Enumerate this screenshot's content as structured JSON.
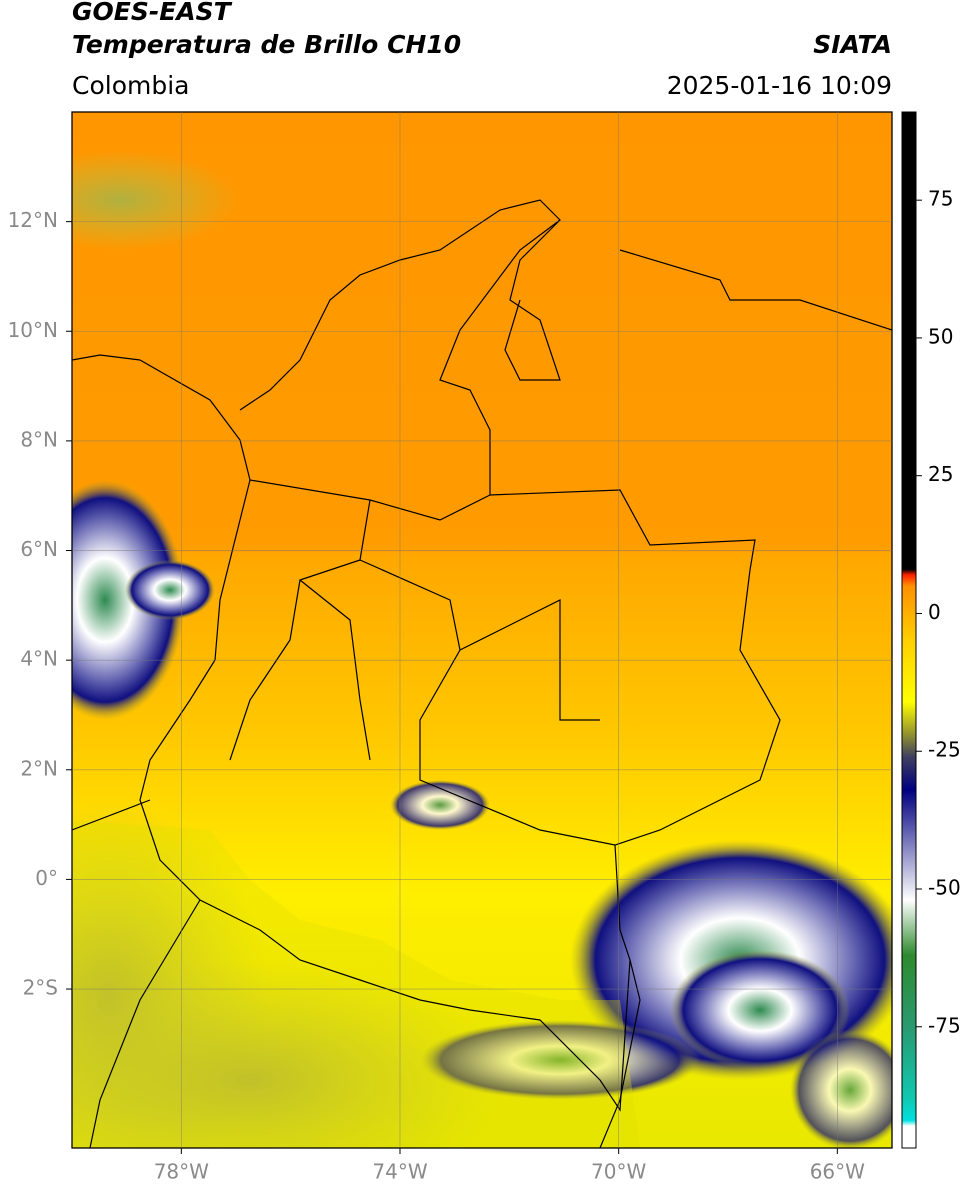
{
  "header": {
    "title": "GOES-EAST",
    "subtitle": "Temperatura de Brillo CH10",
    "agency": "SIATA",
    "region": "Colombia",
    "datetime": "2025-01-16 10:09"
  },
  "map": {
    "xlim": [
      -80,
      -65
    ],
    "ylim": [
      -4.9,
      14
    ],
    "xticks": [
      {
        "value": -78,
        "label": "78°W"
      },
      {
        "value": -74,
        "label": "74°W"
      },
      {
        "value": -70,
        "label": "70°W"
      },
      {
        "value": -66,
        "label": "66°W"
      }
    ],
    "yticks": [
      {
        "value": 12,
        "label": "12°N"
      },
      {
        "value": 10,
        "label": "10°N"
      },
      {
        "value": 8,
        "label": "8°N"
      },
      {
        "value": 6,
        "label": "6°N"
      },
      {
        "value": 4,
        "label": "4°N"
      },
      {
        "value": 2,
        "label": "2°N"
      },
      {
        "value": 0,
        "label": "0°"
      },
      {
        "value": -2,
        "label": "2°S"
      }
    ],
    "grid": true
  },
  "colorbar": {
    "range": [
      -97,
      91
    ],
    "ticks": [
      75,
      50,
      25,
      0,
      -25,
      -50,
      -75
    ],
    "stops": [
      {
        "value": -97,
        "color": "#ffffff"
      },
      {
        "value": -93,
        "color": "#ffffff"
      },
      {
        "value": -92,
        "color": "#00e0e0"
      },
      {
        "value": -88,
        "color": "#10c8b0"
      },
      {
        "value": -75,
        "color": "#2a9a70"
      },
      {
        "value": -62,
        "color": "#2e8a2e"
      },
      {
        "value": -52,
        "color": "#ffffff"
      },
      {
        "value": -42,
        "color": "#8080c0"
      },
      {
        "value": -32,
        "color": "#000080"
      },
      {
        "value": -26,
        "color": "#404060"
      },
      {
        "value": -22,
        "color": "#909030"
      },
      {
        "value": -16,
        "color": "#ffff00"
      },
      {
        "value": -5,
        "color": "#ffd000"
      },
      {
        "value": 5,
        "color": "#ff9000"
      },
      {
        "value": 7,
        "color": "#ff2000"
      },
      {
        "value": 8,
        "color": "#000000"
      },
      {
        "value": 91,
        "color": "#000000"
      }
    ]
  }
}
